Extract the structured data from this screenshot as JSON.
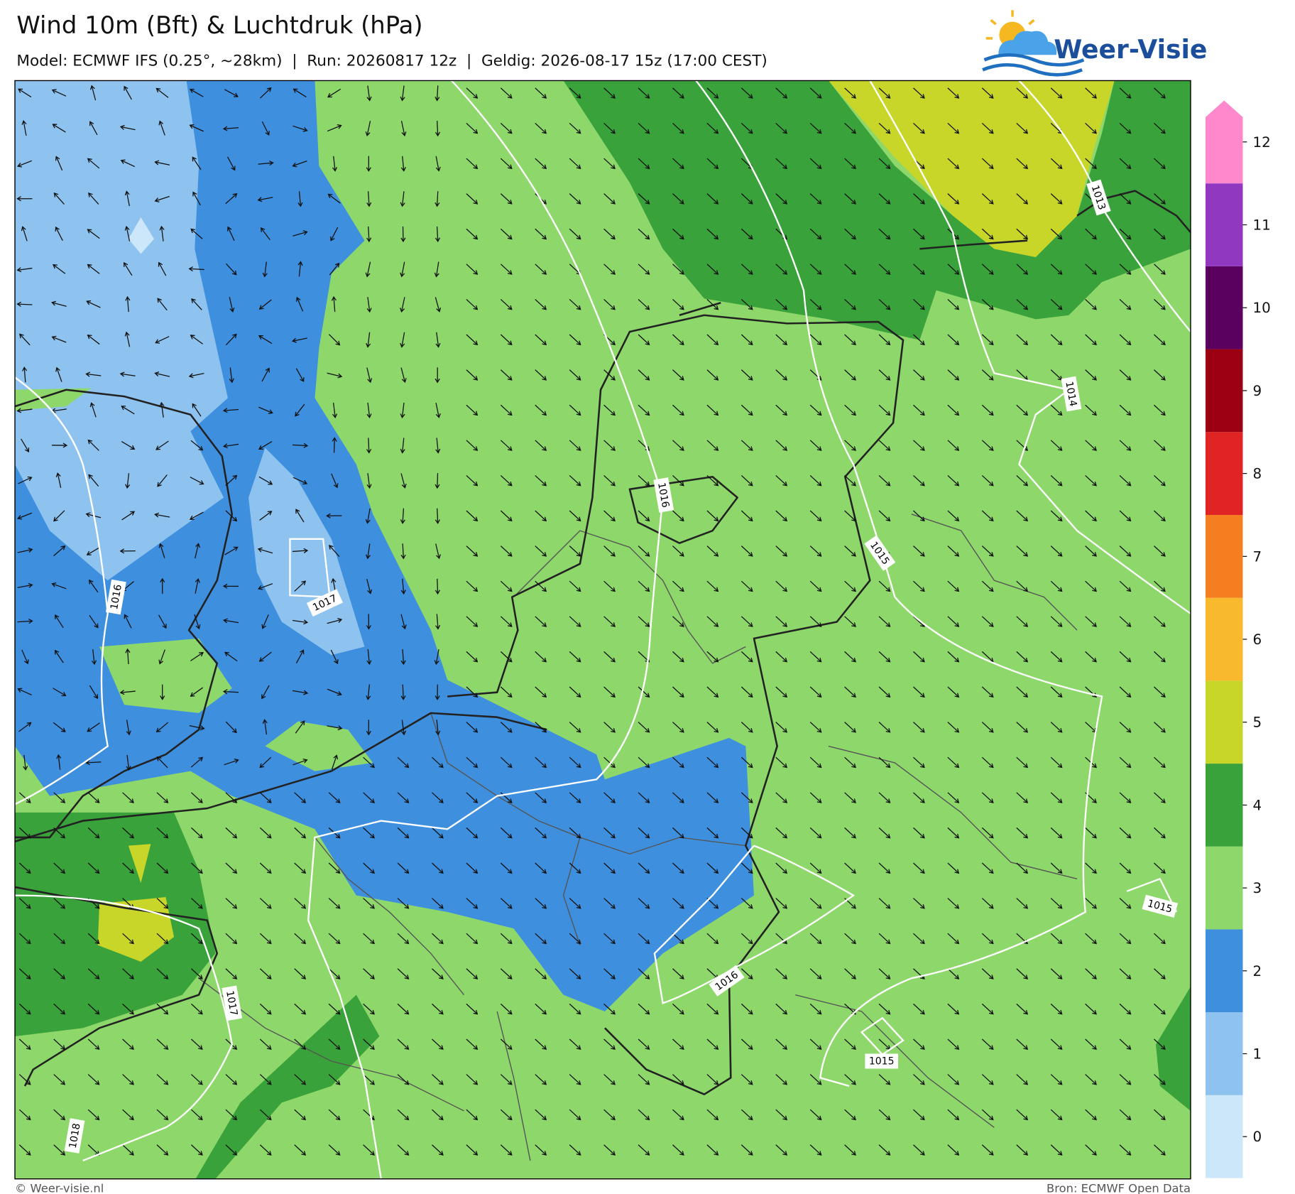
{
  "header": {
    "title": "Wind 10m (Bft) & Luchtdruk (hPa)",
    "subtitle": "Model: ECMWF IFS (0.25°, ~28km)  |  Run: 20260817 12z  |  Geldig: 2026-08-17 15z (17:00 CEST)",
    "logo": "Weer-Visie"
  },
  "isobar_labels": [
    "1016",
    "1015",
    "1013",
    "1014",
    "1017",
    "1016",
    "1017",
    "1016",
    "1015",
    "1015",
    "1018"
  ],
  "colorbar": {
    "ticks": [
      0,
      1,
      2,
      3,
      4,
      5,
      6,
      7,
      8,
      9,
      10,
      11,
      12
    ],
    "colors": [
      "#cce6fa",
      "#8fc3ef",
      "#3f8fdf",
      "#8ed86b",
      "#3aa23a",
      "#c8d62a",
      "#f8b92e",
      "#f57f20",
      "#e02424",
      "#9b0012",
      "#5a005f",
      "#9038c0",
      "#ff88cc"
    ]
  },
  "footer": {
    "left": "© Weer-visie.nl",
    "right": "Bron: ECMWF Open Data"
  }
}
